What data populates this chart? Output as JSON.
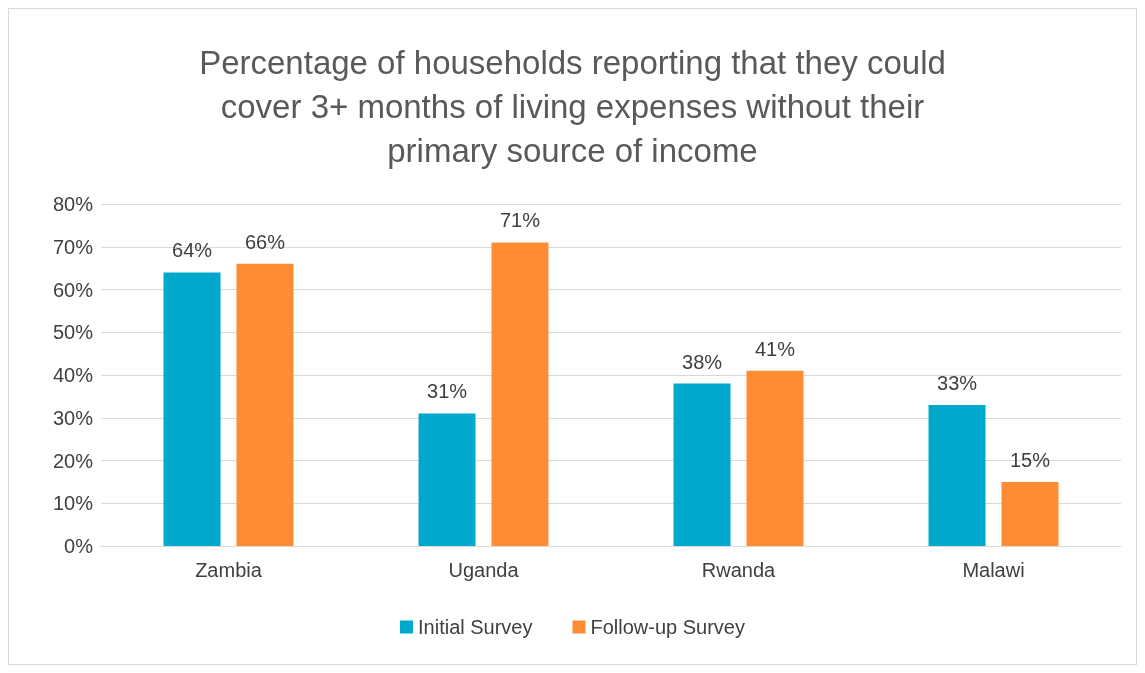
{
  "chart_data": {
    "type": "bar",
    "title": "Percentage of households reporting that they could\ncover 3+ months of living expenses without their\nprimary source of income",
    "categories": [
      "Zambia",
      "Uganda",
      "Rwanda",
      "Malawi"
    ],
    "series": [
      {
        "name": "Initial Survey",
        "color": "#00a9cc",
        "values": [
          64,
          31,
          38,
          33
        ],
        "value_labels": [
          "64%",
          "31%",
          "38%",
          "33%"
        ]
      },
      {
        "name": "Follow-up Survey",
        "color": "#ff8b32",
        "values": [
          66,
          71,
          41,
          15
        ],
        "value_labels": [
          "66%",
          "71%",
          "41%",
          "15%"
        ]
      }
    ],
    "ylim": [
      0,
      80
    ],
    "yticks": [
      {
        "value": 0,
        "label": "0%"
      },
      {
        "value": 10,
        "label": "10%"
      },
      {
        "value": 20,
        "label": "20%"
      },
      {
        "value": 30,
        "label": "30%"
      },
      {
        "value": 40,
        "label": "40%"
      },
      {
        "value": 50,
        "label": "50%"
      },
      {
        "value": 60,
        "label": "60%"
      },
      {
        "value": 70,
        "label": "70%"
      },
      {
        "value": 80,
        "label": "80%"
      }
    ],
    "grid": "y",
    "legend": "bottom"
  }
}
